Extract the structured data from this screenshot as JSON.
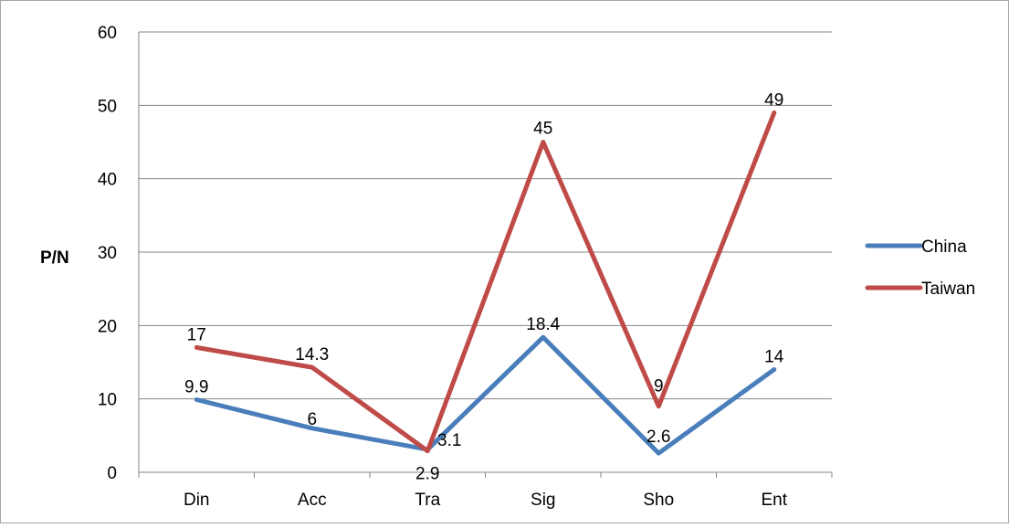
{
  "chart_data": {
    "type": "line",
    "categories": [
      "Din",
      "Acc",
      "Tra",
      "Sig",
      "Sho",
      "Ent"
    ],
    "series": [
      {
        "name": "China",
        "color": "#4A7EBB",
        "values": [
          9.9,
          6,
          3.1,
          18.4,
          2.6,
          14
        ],
        "labels": [
          "9.9",
          "6",
          "3.1",
          "18.4",
          "2.6",
          "14"
        ]
      },
      {
        "name": "Taiwan",
        "color": "#BE4B48",
        "values": [
          17,
          14.3,
          2.9,
          45,
          9,
          49
        ],
        "labels": [
          "17",
          "14.3",
          "2.9",
          "45",
          "9",
          "49"
        ]
      }
    ],
    "ylabel": "P/N",
    "xlabel": "",
    "ylim": [
      0,
      60
    ],
    "yticks": [
      "0",
      "10",
      "20",
      "30",
      "40",
      "50",
      "60"
    ],
    "grid": true,
    "legend_position": "right"
  }
}
